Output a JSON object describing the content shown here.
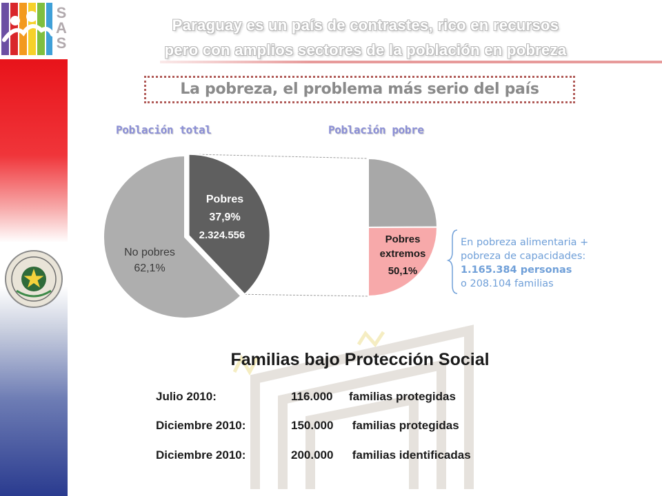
{
  "header": {
    "line1": "Paraguay es un país de contrastes, rico en recursos",
    "line2": "pero con amplios sectores de la población en pobreza"
  },
  "logo": {
    "letters": [
      "S",
      "A",
      "S"
    ]
  },
  "subtitle": "La pobreza, el problema más serio del país",
  "colors": {
    "pobres": "#5f5f5f",
    "no_pobres": "#aeaeae",
    "pobres_extremos": "#f7a9aa",
    "pobres_no_extremos": "#a8a8a8",
    "accent_blue": "#6f9fd8",
    "title_purple": "#8b8fd6"
  },
  "chart_data": [
    {
      "type": "pie",
      "title": "Población total",
      "slices": [
        {
          "label": "Pobres",
          "value": 37.9,
          "value_label": "37,9%",
          "count_label": "2.324.556"
        },
        {
          "label": "No pobres",
          "value": 62.1,
          "value_label": "62,1%"
        }
      ]
    },
    {
      "type": "pie",
      "title": "Población pobre",
      "slices": [
        {
          "label": "Pobres extremos",
          "label_lines": [
            "Pobres",
            "extremos"
          ],
          "value": 50.1,
          "value_label": "50,1%"
        },
        {
          "label": "",
          "value": 49.9
        }
      ]
    }
  ],
  "note": {
    "line1": "En pobreza alimentaria +",
    "line2": "pobreza de capacidades:",
    "line3": "1.165.384 personas",
    "line4": "o 208.104 familias"
  },
  "familias": {
    "title": "Familias bajo Protección Social",
    "rows": [
      {
        "date": "Julio 2010:",
        "count": "116.000",
        "desc": "familias protegidas"
      },
      {
        "date": "Diciembre  2010:",
        "count": "150.000",
        "desc": " familias protegidas"
      },
      {
        "date": "Diciembre 2010:",
        "count": "200.000",
        "desc": " familias identificadas"
      }
    ]
  }
}
